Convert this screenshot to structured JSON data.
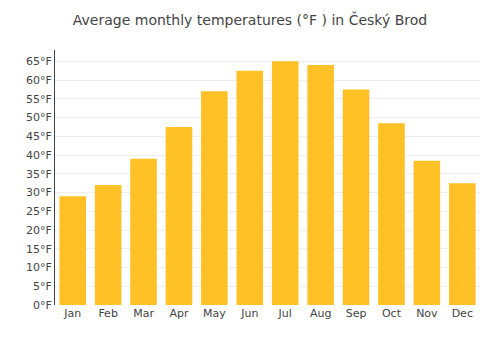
{
  "chart_data": {
    "type": "bar",
    "title": "Average monthly temperatures (°F ) in Český Brod",
    "categories": [
      "Jan",
      "Feb",
      "Mar",
      "Apr",
      "May",
      "Jun",
      "Jul",
      "Aug",
      "Sep",
      "Oct",
      "Nov",
      "Dec"
    ],
    "values": [
      29,
      32,
      39,
      47.5,
      57,
      62.5,
      65,
      64,
      57.5,
      48.5,
      38.5,
      32.5
    ],
    "color": "#FFC125",
    "ylim": [
      0,
      68
    ],
    "yticks": [
      {
        "value": 0,
        "label": "0°F"
      },
      {
        "value": 5,
        "label": "5°F"
      },
      {
        "value": 10,
        "label": "10°F"
      },
      {
        "value": 15,
        "label": "15°F"
      },
      {
        "value": 20,
        "label": "20°F"
      },
      {
        "value": 25,
        "label": "25°F"
      },
      {
        "value": 30,
        "label": "30°F"
      },
      {
        "value": 35,
        "label": "35°F"
      },
      {
        "value": 40,
        "label": "40°F"
      },
      {
        "value": 45,
        "label": "45°F"
      },
      {
        "value": 50,
        "label": "50°F"
      },
      {
        "value": 55,
        "label": "55°F"
      },
      {
        "value": 60,
        "label": "60°F"
      },
      {
        "value": 65,
        "label": "65°F"
      }
    ],
    "grid": true
  }
}
